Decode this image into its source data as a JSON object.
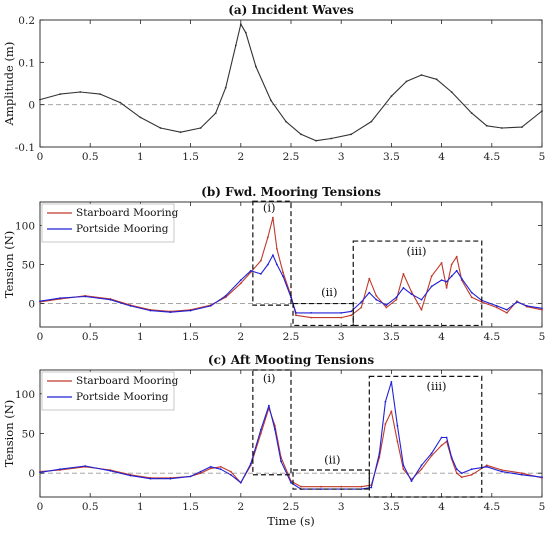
{
  "chart_data": [
    {
      "type": "line",
      "title": "(a) Incident Waves",
      "xlabel": "",
      "ylabel": "Amplitude (m)",
      "xlim": [
        0,
        5
      ],
      "ylim": [
        -0.1,
        0.2
      ],
      "xticks": [
        "0",
        "0.5",
        "1",
        "1.5",
        "2",
        "2.5",
        "3",
        "3.5",
        "4",
        "4.5",
        "5"
      ],
      "yticks": [
        "-0.1",
        "0",
        "0.1",
        "0.2"
      ],
      "reference_line": 0,
      "grid": false,
      "series": [
        {
          "color": "#333333",
          "x": [
            0,
            0.2,
            0.4,
            0.6,
            0.8,
            1.0,
            1.2,
            1.4,
            1.6,
            1.75,
            1.85,
            1.95,
            2.0,
            2.05,
            2.15,
            2.3,
            2.45,
            2.6,
            2.75,
            2.9,
            3.1,
            3.3,
            3.5,
            3.65,
            3.8,
            3.95,
            4.1,
            4.3,
            4.45,
            4.6,
            4.8,
            5.0
          ],
          "y": [
            0.012,
            0.025,
            0.03,
            0.025,
            0.005,
            -0.03,
            -0.055,
            -0.065,
            -0.055,
            -0.02,
            0.04,
            0.14,
            0.19,
            0.17,
            0.09,
            0.01,
            -0.04,
            -0.07,
            -0.085,
            -0.08,
            -0.07,
            -0.04,
            0.02,
            0.055,
            0.07,
            0.06,
            0.03,
            -0.02,
            -0.05,
            -0.055,
            -0.053,
            -0.015
          ]
        }
      ]
    },
    {
      "type": "line",
      "title": "(b) Fwd. Mooring Tensions",
      "xlabel": "",
      "ylabel": "Tension (N)",
      "xlim": [
        0,
        5
      ],
      "ylim": [
        -30,
        130
      ],
      "xticks": [
        "0",
        "0.5",
        "1",
        "1.5",
        "2",
        "2.5",
        "3",
        "3.5",
        "4",
        "4.5",
        "5"
      ],
      "yticks": [
        "0",
        "50",
        "100"
      ],
      "reference_line": 0,
      "grid": false,
      "legend": "top-left",
      "series": [
        {
          "name": "Starboard Mooring",
          "color": "#c0392b",
          "x": [
            0,
            0.2,
            0.45,
            0.7,
            0.9,
            1.1,
            1.3,
            1.5,
            1.7,
            1.85,
            2.0,
            2.1,
            2.2,
            2.27,
            2.32,
            2.36,
            2.42,
            2.5,
            2.55,
            2.7,
            3.0,
            3.1,
            3.2,
            3.28,
            3.35,
            3.45,
            3.55,
            3.62,
            3.7,
            3.8,
            3.9,
            4.0,
            4.05,
            4.1,
            4.15,
            4.2,
            4.3,
            4.4,
            4.55,
            4.65,
            4.75,
            4.85,
            5.0
          ],
          "y": [
            2,
            6,
            10,
            6,
            -2,
            -8,
            -10,
            -8,
            -2,
            8,
            26,
            40,
            55,
            85,
            110,
            70,
            40,
            10,
            -15,
            -18,
            -18,
            -15,
            -5,
            32,
            10,
            -5,
            5,
            38,
            15,
            -8,
            35,
            52,
            20,
            50,
            60,
            30,
            8,
            2,
            -5,
            -12,
            3,
            -4,
            -8
          ]
        },
        {
          "name": "Portside Mooring",
          "color": "#2121d8",
          "x": [
            0,
            0.2,
            0.45,
            0.7,
            0.9,
            1.1,
            1.3,
            1.5,
            1.7,
            1.85,
            2.0,
            2.1,
            2.2,
            2.27,
            2.32,
            2.36,
            2.42,
            2.5,
            2.55,
            2.7,
            3.0,
            3.1,
            3.2,
            3.28,
            3.35,
            3.45,
            3.55,
            3.62,
            3.7,
            3.8,
            3.9,
            4.0,
            4.05,
            4.1,
            4.15,
            4.2,
            4.3,
            4.4,
            4.55,
            4.65,
            4.75,
            4.85,
            5.0
          ],
          "y": [
            3,
            7,
            9,
            5,
            -3,
            -9,
            -11,
            -9,
            -3,
            10,
            30,
            42,
            38,
            50,
            62,
            50,
            35,
            8,
            -12,
            -12,
            -12,
            -10,
            2,
            14,
            5,
            -2,
            8,
            20,
            12,
            5,
            22,
            30,
            28,
            35,
            42,
            32,
            14,
            4,
            -3,
            -8,
            2,
            -3,
            -6
          ]
        }
      ],
      "annotations": [
        "(i)",
        "(ii)",
        "(iii)"
      ]
    },
    {
      "type": "line",
      "title": "(c) Aft Mooting Tensions",
      "xlabel": "Time (s)",
      "ylabel": "Tension (N)",
      "xlim": [
        0,
        5
      ],
      "ylim": [
        -30,
        130
      ],
      "xticks": [
        "0",
        "0.5",
        "1",
        "1.5",
        "2",
        "2.5",
        "3",
        "3.5",
        "4",
        "4.5",
        "5"
      ],
      "yticks": [
        "0",
        "50",
        "100"
      ],
      "reference_line": 0,
      "grid": false,
      "legend": "top-left",
      "series": [
        {
          "name": "Starboard Mooring",
          "color": "#c0392b",
          "x": [
            0,
            0.2,
            0.45,
            0.7,
            0.9,
            1.1,
            1.3,
            1.5,
            1.6,
            1.7,
            1.8,
            1.9,
            2.0,
            2.1,
            2.2,
            2.28,
            2.34,
            2.4,
            2.5,
            2.6,
            2.8,
            3.0,
            3.2,
            3.3,
            3.38,
            3.44,
            3.5,
            3.56,
            3.62,
            3.7,
            3.8,
            3.9,
            4.0,
            4.05,
            4.1,
            4.15,
            4.2,
            4.3,
            4.45,
            4.6,
            4.8,
            5.0
          ],
          "y": [
            2,
            4,
            8,
            4,
            -2,
            -6,
            -6,
            -4,
            0,
            6,
            8,
            2,
            -12,
            10,
            50,
            82,
            60,
            20,
            -10,
            -17,
            -17,
            -17,
            -17,
            -15,
            20,
            62,
            78,
            40,
            5,
            -8,
            5,
            22,
            35,
            40,
            18,
            0,
            -5,
            -2,
            10,
            4,
            0,
            -6
          ]
        },
        {
          "name": "Portside Mooring",
          "color": "#2121d8",
          "x": [
            0,
            0.2,
            0.45,
            0.7,
            0.9,
            1.1,
            1.3,
            1.5,
            1.6,
            1.7,
            1.8,
            1.9,
            2.0,
            2.1,
            2.2,
            2.28,
            2.34,
            2.4,
            2.5,
            2.6,
            2.8,
            3.0,
            3.2,
            3.3,
            3.38,
            3.44,
            3.5,
            3.56,
            3.62,
            3.7,
            3.8,
            3.9,
            4.0,
            4.05,
            4.1,
            4.15,
            4.2,
            4.3,
            4.45,
            4.6,
            4.8,
            5.0
          ],
          "y": [
            1,
            5,
            9,
            3,
            -3,
            -7,
            -7,
            -4,
            2,
            8,
            5,
            -2,
            -12,
            12,
            55,
            85,
            55,
            15,
            -12,
            -20,
            -20,
            -20,
            -20,
            -18,
            25,
            90,
            115,
            60,
            10,
            -10,
            10,
            25,
            45,
            45,
            20,
            5,
            0,
            5,
            8,
            2,
            -2,
            -5
          ]
        }
      ],
      "annotations": [
        "(i)",
        "(ii)",
        "(iii)"
      ]
    }
  ]
}
